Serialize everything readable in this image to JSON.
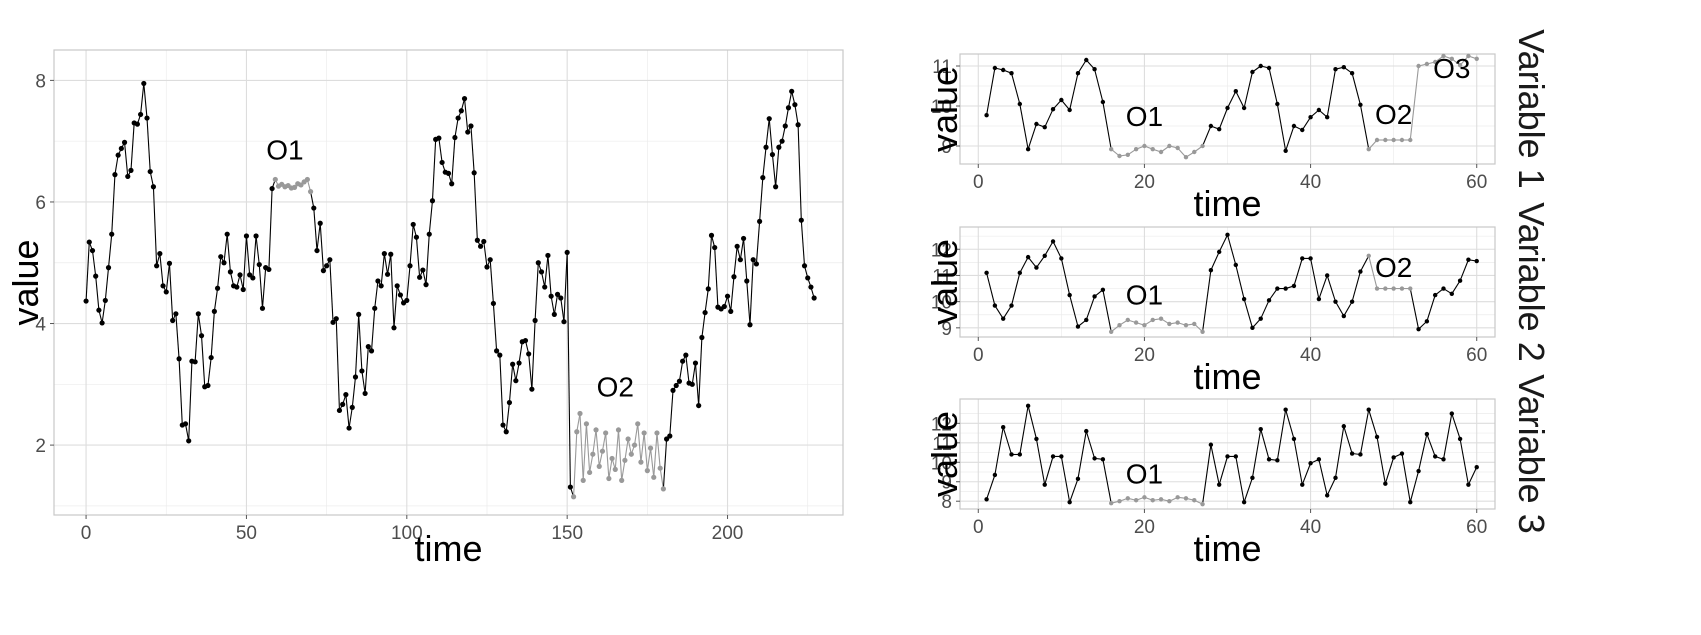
{
  "chart_data": [
    {
      "type": "line",
      "xlabel": "time",
      "ylabel": "value",
      "xlim": [
        -10,
        236
      ],
      "ylim": [
        0.85,
        8.5
      ],
      "x_ticks": [
        0,
        50,
        100,
        150,
        200
      ],
      "y_ticks": [
        2,
        4,
        6,
        8
      ],
      "x_tick_labels": [
        "0",
        "50",
        "100",
        "150",
        "200"
      ],
      "y_tick_labels": [
        "2",
        "4",
        "6",
        "8"
      ],
      "grid": true,
      "series_values": [
        4.37,
        5.34,
        5.2,
        4.78,
        4.22,
        4.01,
        4.38,
        4.92,
        5.47,
        6.45,
        6.77,
        6.88,
        6.98,
        6.42,
        6.52,
        7.3,
        7.28,
        7.44,
        7.95,
        7.38,
        6.5,
        6.25,
        4.95,
        5.15,
        4.62,
        4.52,
        4.99,
        4.05,
        4.16,
        3.42,
        2.33,
        2.35,
        2.07,
        3.38,
        3.37,
        4.16,
        3.8,
        2.96,
        2.98,
        3.44,
        4.2,
        4.58,
        5.1,
        5.0,
        5.47,
        4.85,
        4.62,
        4.6,
        4.8,
        4.56,
        5.44,
        4.8,
        4.75,
        5.44,
        4.97,
        4.25,
        4.92,
        4.89,
        6.22,
        6.37,
        6.26,
        6.29,
        6.25,
        6.27,
        6.23,
        6.24,
        6.3,
        6.28,
        6.33,
        6.37,
        6.17,
        5.9,
        5.2,
        5.65,
        4.87,
        4.95,
        5.05,
        4.02,
        4.08,
        2.57,
        2.67,
        2.83,
        2.28,
        2.62,
        3.12,
        4.15,
        3.22,
        2.85,
        3.62,
        3.55,
        4.25,
        4.7,
        4.62,
        5.15,
        4.81,
        5.14,
        3.93,
        4.62,
        4.47,
        4.34,
        4.38,
        4.95,
        5.63,
        5.42,
        4.76,
        4.88,
        4.64,
        5.47,
        6.02,
        7.03,
        7.05,
        6.65,
        6.49,
        6.47,
        6.3,
        7.06,
        7.38,
        7.5,
        7.7,
        7.15,
        7.25,
        6.48,
        5.37,
        5.27,
        5.35,
        4.93,
        5.05,
        4.33,
        3.55,
        3.48,
        2.33,
        2.22,
        2.7,
        3.33,
        3.06,
        3.35,
        3.7,
        3.72,
        3.5,
        2.92,
        4.05,
        5.0,
        4.85,
        4.6,
        5.12,
        4.45,
        4.15,
        4.48,
        4.42,
        4.03,
        5.17,
        1.31,
        1.15,
        2.22,
        2.52,
        1.42,
        2.35,
        1.55,
        1.85,
        2.25,
        1.65,
        1.9,
        2.2,
        1.45,
        1.78,
        1.6,
        2.25,
        1.42,
        1.75,
        2.1,
        1.85,
        2.0,
        2.35,
        1.72,
        2.2,
        1.58,
        1.95,
        1.47,
        2.2,
        1.62,
        1.28,
        2.1,
        2.15,
        2.9,
        2.98,
        3.05,
        3.38,
        3.48,
        3.02,
        3.0,
        3.35,
        2.65,
        3.77,
        4.18,
        4.57,
        5.45,
        5.25,
        4.27,
        4.24,
        4.28,
        4.45,
        4.2,
        4.77,
        5.27,
        5.05,
        5.4,
        4.7,
        3.98,
        5.05,
        4.98,
        5.68,
        6.4,
        6.9,
        7.37,
        6.78,
        6.25,
        6.9,
        7.0,
        7.25,
        7.55,
        7.82,
        7.6,
        7.27,
        5.7,
        4.95,
        4.75,
        4.6,
        4.42
      ],
      "outlier_ranges": [
        [
          59,
          70
        ],
        [
          152,
          180
        ]
      ],
      "annotations": [
        {
          "label": "O1",
          "x": 62,
          "y": 6.7
        },
        {
          "label": "O2",
          "x": 165,
          "y": 2.8
        }
      ],
      "line_color": "#000000",
      "outlier_color": "#999999"
    },
    {
      "type": "line",
      "facet_label": "Variable 1",
      "xlabel": "time",
      "ylabel": "value",
      "xlim": [
        -2.2,
        62.2
      ],
      "ylim": [
        8.55,
        11.3
      ],
      "x_ticks": [
        0,
        20,
        40,
        60
      ],
      "y_ticks": [
        9,
        10,
        11
      ],
      "x_tick_labels": [
        "0",
        "20",
        "40",
        "60"
      ],
      "y_tick_labels": [
        "9",
        "10",
        "11"
      ],
      "grid": true,
      "x": [
        1,
        2,
        3,
        4,
        5,
        6,
        7,
        8,
        9,
        10,
        11,
        12,
        13,
        14,
        15,
        16,
        17,
        18,
        19,
        20,
        21,
        22,
        23,
        24,
        25,
        26,
        27,
        28,
        29,
        30,
        31,
        32,
        33,
        34,
        35,
        36,
        37,
        38,
        39,
        40,
        41,
        42,
        43,
        44,
        45,
        46,
        47,
        48,
        49,
        50,
        51,
        52,
        53,
        54,
        55,
        56,
        57,
        58,
        59,
        60
      ],
      "values": [
        9.77,
        10.95,
        10.9,
        10.82,
        10.05,
        8.92,
        9.55,
        9.47,
        9.92,
        10.15,
        9.9,
        10.82,
        11.15,
        10.92,
        10.1,
        8.92,
        8.75,
        8.78,
        8.92,
        9.0,
        8.92,
        8.85,
        9.0,
        8.95,
        8.72,
        8.85,
        9.0,
        9.5,
        9.42,
        9.95,
        10.37,
        9.95,
        10.85,
        11.0,
        10.95,
        10.05,
        8.88,
        9.5,
        9.4,
        9.72,
        9.9,
        9.72,
        10.92,
        10.97,
        10.82,
        10.03,
        8.92,
        9.15,
        9.15,
        9.15,
        9.15,
        9.15,
        11.0,
        11.05,
        11.1,
        11.25,
        11.18,
        11.02,
        11.25,
        11.18
      ],
      "outlier_ranges": [
        [
          16,
          27
        ],
        [
          47,
          52
        ],
        [
          53,
          60
        ]
      ],
      "annotations": [
        {
          "label": "O1",
          "x": 20,
          "y": 9.5
        },
        {
          "label": "O2",
          "x": 50,
          "y": 9.55
        },
        {
          "label": "O3",
          "x": 57,
          "y": 10.7
        }
      ],
      "line_color": "#000000",
      "outlier_color": "#999999"
    },
    {
      "type": "line",
      "facet_label": "Variable 2",
      "xlabel": "time",
      "ylabel": "value",
      "xlim": [
        -2.2,
        62.2
      ],
      "ylim": [
        8.65,
        12.85
      ],
      "x_ticks": [
        0,
        20,
        40,
        60
      ],
      "y_ticks": [
        9,
        10,
        11,
        12
      ],
      "x_tick_labels": [
        "0",
        "20",
        "40",
        "60"
      ],
      "y_tick_labels": [
        "9",
        "10",
        "11",
        "12"
      ],
      "grid": true,
      "x": [
        1,
        2,
        3,
        4,
        5,
        6,
        7,
        8,
        9,
        10,
        11,
        12,
        13,
        14,
        15,
        16,
        17,
        18,
        19,
        20,
        21,
        22,
        23,
        24,
        25,
        26,
        27,
        28,
        29,
        30,
        31,
        32,
        33,
        34,
        35,
        36,
        37,
        38,
        39,
        40,
        41,
        42,
        43,
        44,
        45,
        46,
        47,
        48,
        49,
        50,
        51,
        52,
        53,
        54,
        55,
        56,
        57,
        58,
        59,
        60
      ],
      "values": [
        11.1,
        9.85,
        9.35,
        9.85,
        11.1,
        11.7,
        11.3,
        11.75,
        12.3,
        11.65,
        10.25,
        9.05,
        9.3,
        10.2,
        10.45,
        8.85,
        9.1,
        9.3,
        9.2,
        9.1,
        9.3,
        9.35,
        9.15,
        9.2,
        9.1,
        9.15,
        8.85,
        11.2,
        11.9,
        12.55,
        11.4,
        10.1,
        9.0,
        9.35,
        10.05,
        10.5,
        10.5,
        10.6,
        11.65,
        11.65,
        10.1,
        11.0,
        10.0,
        9.45,
        10.0,
        11.15,
        11.75,
        10.5,
        10.5,
        10.5,
        10.5,
        10.5,
        8.95,
        9.25,
        10.25,
        10.5,
        10.3,
        10.8,
        11.6,
        11.55
      ],
      "outlier_ranges": [
        [
          16,
          27
        ],
        [
          47,
          52
        ]
      ],
      "annotations": [
        {
          "label": "O1",
          "x": 20,
          "y": 9.9
        },
        {
          "label": "O2",
          "x": 50,
          "y": 10.95
        }
      ],
      "line_color": "#000000",
      "outlier_color": "#999999"
    },
    {
      "type": "line",
      "facet_label": "Variable 3",
      "xlabel": "time",
      "ylabel": "value",
      "xlim": [
        -2.2,
        62.2
      ],
      "ylim": [
        7.6,
        13.25
      ],
      "x_ticks": [
        0,
        20,
        40,
        60
      ],
      "y_ticks": [
        8,
        9,
        10,
        11,
        12
      ],
      "x_tick_labels": [
        "0",
        "20",
        "40",
        "60"
      ],
      "y_tick_labels": [
        "8",
        "9",
        "10",
        "11",
        "12"
      ],
      "grid": true,
      "x": [
        1,
        2,
        3,
        4,
        5,
        6,
        7,
        8,
        9,
        10,
        11,
        12,
        13,
        14,
        15,
        16,
        17,
        18,
        19,
        20,
        21,
        22,
        23,
        24,
        25,
        26,
        27,
        28,
        29,
        30,
        31,
        32,
        33,
        34,
        35,
        36,
        37,
        38,
        39,
        40,
        41,
        42,
        43,
        44,
        45,
        46,
        47,
        48,
        49,
        50,
        51,
        52,
        53,
        54,
        55,
        56,
        57,
        58,
        59,
        60
      ],
      "values": [
        8.1,
        9.35,
        11.8,
        10.4,
        10.4,
        12.9,
        11.2,
        8.85,
        10.3,
        10.3,
        7.95,
        9.15,
        11.6,
        10.2,
        10.15,
        7.9,
        8.0,
        8.15,
        8.05,
        8.2,
        8.05,
        8.1,
        8.0,
        8.2,
        8.15,
        8.05,
        7.85,
        10.9,
        8.85,
        10.3,
        10.3,
        7.95,
        9.2,
        11.7,
        10.15,
        10.1,
        12.7,
        11.2,
        8.85,
        9.95,
        10.15,
        8.3,
        9.2,
        11.85,
        10.45,
        10.4,
        12.7,
        11.3,
        8.9,
        10.25,
        10.45,
        7.95,
        9.55,
        11.45,
        10.3,
        10.15,
        12.5,
        11.2,
        8.85,
        9.75
      ],
      "outlier_ranges": [
        [
          16,
          27
        ]
      ],
      "annotations": [
        {
          "label": "O1",
          "x": 20,
          "y": 8.9
        }
      ],
      "line_color": "#000000",
      "outlier_color": "#999999"
    }
  ]
}
